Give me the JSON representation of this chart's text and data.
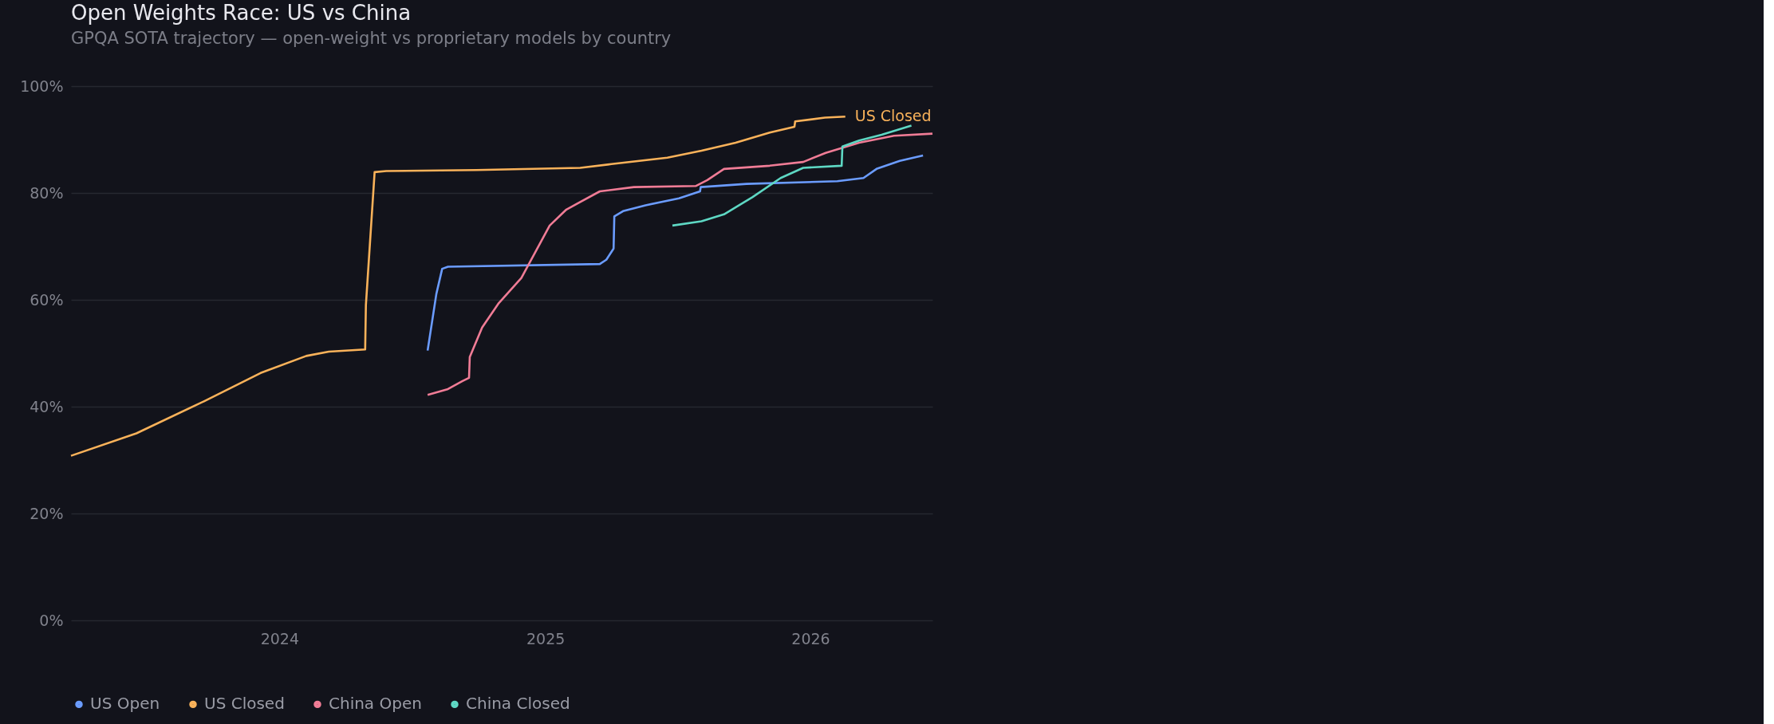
{
  "chart_data": {
    "type": "line",
    "title": "Open Weights Race: US vs China",
    "subtitle": "GPQA SOTA trajectory — open-weight vs proprietary models by country",
    "xlim": [
      "2023-03-20",
      "2026-06-18"
    ],
    "xticks": [
      "2024",
      "2025",
      "2026"
    ],
    "ylim": [
      0,
      100
    ],
    "yticks": [
      {
        "value": 0,
        "label": "0%"
      },
      {
        "value": 20,
        "label": "20%"
      },
      {
        "value": 40,
        "label": "40%"
      },
      {
        "value": 60,
        "label": "60%"
      },
      {
        "value": 80,
        "label": "80%"
      },
      {
        "value": 100,
        "label": "100%"
      }
    ],
    "grid": "y",
    "legend": "bottom left",
    "marker": "none",
    "line_style": "solid",
    "annotations": [
      {
        "text": "US Closed",
        "x": "2026-02-18",
        "y": 94.3
      }
    ],
    "series": [
      {
        "name": "US Open",
        "color": "#6b9cff",
        "x": [
          "2024-07-23",
          "2024-08-04",
          "2024-08-12",
          "2024-08-20",
          "2025-03-17",
          "2025-03-26",
          "2025-04-05",
          "2025-04-06",
          "2025-04-18",
          "2025-05-19",
          "2025-07-04",
          "2025-08-02",
          "2025-08-03",
          "2025-10-05",
          "2026-02-07",
          "2026-03-15",
          "2026-04-02",
          "2026-05-04",
          "2026-06-05"
        ],
        "values": [
          50.5,
          61.1,
          65.8,
          66.2,
          66.7,
          67.5,
          69.6,
          75.6,
          76.6,
          77.7,
          79.0,
          80.3,
          81.1,
          81.7,
          82.2,
          82.8,
          84.5,
          86.0,
          87.0
        ]
      },
      {
        "name": "US Closed",
        "color": "#f9b25a",
        "x": [
          "2023-03-20",
          "2023-06-18",
          "2023-09-19",
          "2023-12-06",
          "2024-02-07",
          "2024-03-09",
          "2024-04-28",
          "2024-04-29",
          "2024-05-11",
          "2024-05-27",
          "2024-09-28",
          "2025-02-18",
          "2025-04-02",
          "2025-06-18",
          "2025-08-04",
          "2025-09-20",
          "2025-11-06",
          "2025-12-10",
          "2025-12-11",
          "2026-01-21",
          "2026-02-18"
        ],
        "values": [
          30.8,
          35.0,
          41.0,
          46.3,
          49.5,
          50.3,
          50.7,
          59.0,
          83.9,
          84.1,
          84.3,
          84.7,
          85.4,
          86.6,
          87.9,
          89.4,
          91.3,
          92.4,
          93.4,
          94.1,
          94.3
        ]
      },
      {
        "name": "China Open",
        "color": "#f07c96",
        "x": [
          "2024-07-23",
          "2024-08-20",
          "2024-09-09",
          "2024-09-18",
          "2024-09-19",
          "2024-10-06",
          "2024-10-29",
          "2024-11-29",
          "2025-01-07",
          "2025-01-30",
          "2025-03-17",
          "2025-05-03",
          "2025-07-27",
          "2025-08-12",
          "2025-09-04",
          "2025-11-06",
          "2025-12-22",
          "2026-01-22",
          "2026-03-09",
          "2026-04-26",
          "2026-06-18"
        ],
        "values": [
          42.2,
          43.3,
          44.8,
          45.4,
          49.3,
          54.8,
          59.4,
          64.1,
          73.9,
          76.9,
          80.3,
          81.1,
          81.3,
          82.4,
          84.5,
          85.1,
          85.8,
          87.5,
          89.4,
          90.7,
          91.1
        ]
      },
      {
        "name": "China Closed",
        "color": "#5ed8c4",
        "x": [
          "2025-06-25",
          "2025-08-04",
          "2025-09-04",
          "2025-10-13",
          "2025-11-21",
          "2025-12-22",
          "2026-02-13",
          "2026-02-14",
          "2026-03-09",
          "2026-04-09",
          "2026-05-20"
        ],
        "values": [
          73.9,
          74.7,
          76.0,
          79.2,
          82.8,
          84.7,
          85.1,
          88.7,
          89.8,
          90.9,
          92.6
        ]
      }
    ]
  }
}
